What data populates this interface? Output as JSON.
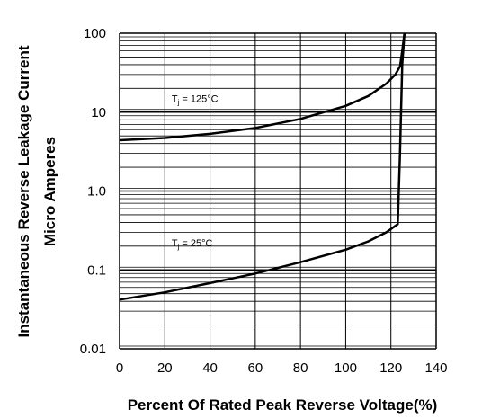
{
  "chart_data": {
    "type": "line",
    "title": "",
    "xlabel": "Percent Of Rated Peak Reverse Voltage(%)",
    "ylabel_lines": [
      "Instantaneous Reverse Leakage Current",
      "Micro Amperes"
    ],
    "xlim": [
      0,
      140
    ],
    "ylim": [
      0.01,
      100
    ],
    "y_scale": "log",
    "grid": true,
    "x_ticks": [
      "0",
      "20",
      "40",
      "60",
      "80",
      "100",
      "120",
      "140"
    ],
    "y_ticks": [
      "0.01",
      "0.1",
      "1.0",
      "10",
      "100"
    ],
    "series": [
      {
        "x": [
          0,
          20,
          40,
          60,
          80,
          100,
          110,
          118,
          122,
          124,
          125,
          126
        ],
        "y": [
          4.4,
          4.7,
          5.3,
          6.3,
          8.2,
          12,
          16,
          23,
          30,
          38,
          60,
          100
        ]
      },
      {
        "x": [
          0,
          20,
          40,
          60,
          80,
          100,
          110,
          118,
          123,
          124,
          125,
          126
        ],
        "y": [
          0.042,
          0.052,
          0.068,
          0.09,
          0.125,
          0.18,
          0.23,
          0.3,
          0.38,
          3,
          40,
          100
        ]
      }
    ],
    "annotations": [
      {
        "main": "T",
        "sub": "j",
        "rest": " = 125°C",
        "x": 23,
        "y": 15
      },
      {
        "main": "T",
        "sub": "j",
        "rest": " = 25°C",
        "x": 23,
        "y": 0.22
      }
    ],
    "line_color": "#000000",
    "grid_color": "#000000"
  }
}
